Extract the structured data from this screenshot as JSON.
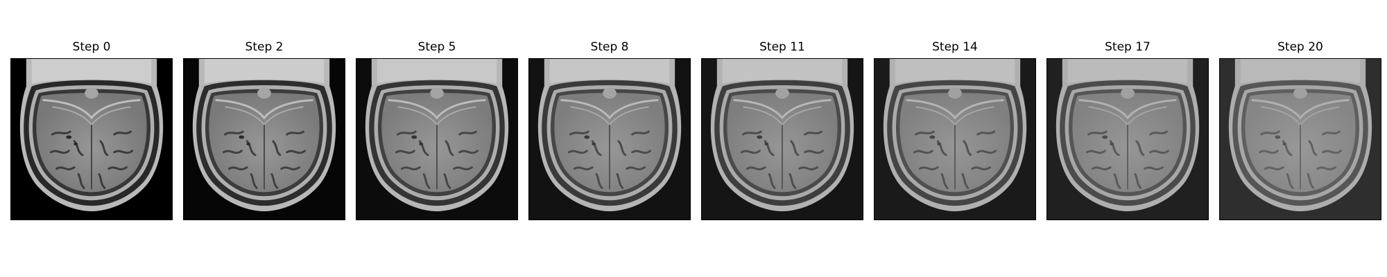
{
  "figure": {
    "panels": [
      {
        "title": "Step 0",
        "step": 0,
        "background": "#000000",
        "contrast": 1.0
      },
      {
        "title": "Step 2",
        "step": 2,
        "background": "#060606",
        "contrast": 0.96
      },
      {
        "title": "Step 5",
        "step": 5,
        "background": "#0c0c0c",
        "contrast": 0.9
      },
      {
        "title": "Step 8",
        "step": 8,
        "background": "#121212",
        "contrast": 0.85
      },
      {
        "title": "Step 11",
        "step": 11,
        "background": "#151515",
        "contrast": 0.8
      },
      {
        "title": "Step 14",
        "step": 14,
        "background": "#1a1a1a",
        "contrast": 0.74
      },
      {
        "title": "Step 17",
        "step": 17,
        "background": "#202020",
        "contrast": 0.68
      },
      {
        "title": "Step 20",
        "step": 20,
        "background": "#2e2e2e",
        "contrast": 0.6
      }
    ]
  }
}
